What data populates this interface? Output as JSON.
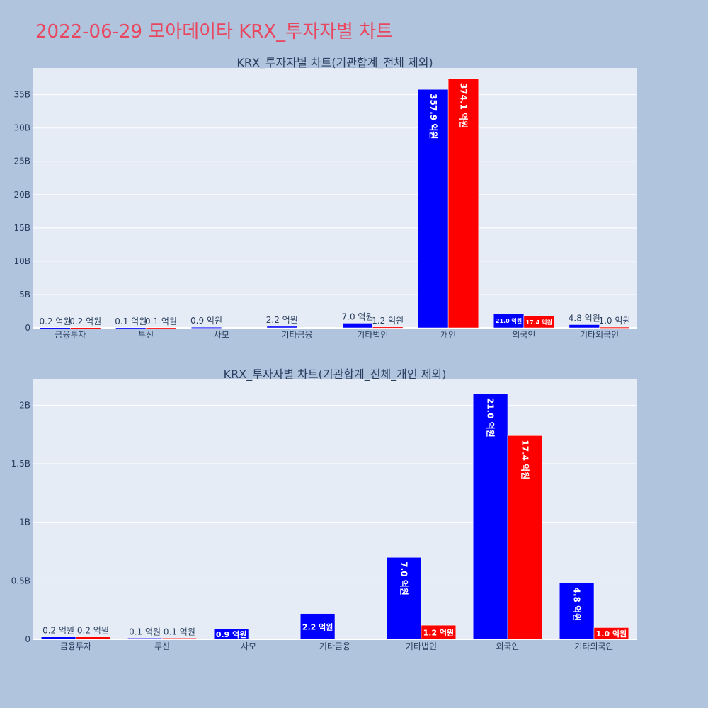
{
  "page": {
    "title": "2022-06-29 모아데이타 KRX_투자자별 차트"
  },
  "colors": {
    "page_bg": "#b0c4de",
    "plot_bg": "#e5ecf6",
    "title": "#e8475f",
    "series_a": "#0000ff",
    "series_b": "#ff0000",
    "text": "#2a3f5f"
  },
  "chart_data": [
    {
      "type": "bar",
      "title": "KRX_투자자별 차트(기관합계_전체 제외)",
      "categories": [
        "금융투자",
        "투신",
        "사모",
        "기타금융",
        "기타법인",
        "개인",
        "외국인",
        "기타외국인"
      ],
      "series": [
        {
          "color": "#0000ff",
          "values": [
            20000000,
            10000000,
            90000000,
            220000000,
            700000000,
            35790000000,
            2100000000,
            480000000
          ],
          "labels": [
            "0.2 억원",
            "0.1 억원",
            "0.9 억원",
            "2.2 억원",
            "7.0 억원",
            "357.9 억원",
            "21.0 억원",
            "4.8 억원"
          ]
        },
        {
          "color": "#ff0000",
          "values": [
            20000000,
            10000000,
            null,
            null,
            120000000,
            37410000000,
            1740000000,
            100000000
          ],
          "labels": [
            "0.2 억원",
            "0.1 억원",
            "",
            "",
            "1.2 억원",
            "374.1 억원",
            "17.4 억원",
            "1.0 억원"
          ]
        }
      ],
      "ylim": [
        0,
        39000000000
      ],
      "yticks": [
        0,
        5000000000,
        10000000000,
        15000000000,
        20000000000,
        25000000000,
        30000000000,
        35000000000
      ],
      "ytick_labels": [
        "0",
        "5B",
        "10B",
        "15B",
        "20B",
        "25B",
        "30B",
        "35B"
      ],
      "grid": true
    },
    {
      "type": "bar",
      "title": "KRX_투자자별 차트(기관합계_전체_개인 제외)",
      "categories": [
        "금융투자",
        "투신",
        "사모",
        "기타금융",
        "기타법인",
        "외국인",
        "기타외국인"
      ],
      "series": [
        {
          "color": "#0000ff",
          "values": [
            20000000,
            10000000,
            90000000,
            220000000,
            700000000,
            2100000000,
            480000000
          ],
          "labels": [
            "0.2 억원",
            "0.1 억원",
            "0.9 억원",
            "2.2 억원",
            "7.0 억원",
            "21.0 억원",
            "4.8 억원"
          ]
        },
        {
          "color": "#ff0000",
          "values": [
            20000000,
            10000000,
            null,
            null,
            120000000,
            1740000000,
            100000000
          ],
          "labels": [
            "0.2 억원",
            "0.1 억원",
            "",
            "",
            "1.2 억원",
            "17.4 억원",
            "1.0 억원"
          ]
        }
      ],
      "ylim": [
        0,
        2220000000
      ],
      "yticks": [
        0,
        500000000,
        1000000000,
        1500000000,
        2000000000
      ],
      "ytick_labels": [
        "0",
        "0.5B",
        "1B",
        "1.5B",
        "2B"
      ],
      "grid": true
    }
  ]
}
